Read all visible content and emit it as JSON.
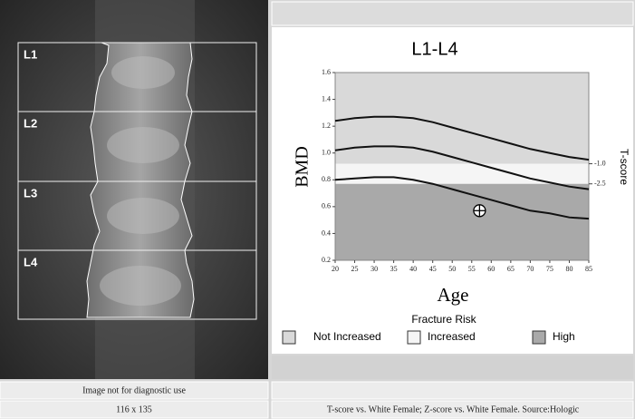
{
  "image": {
    "regions": [
      "L1",
      "L2",
      "L3",
      "L4"
    ]
  },
  "footer": {
    "left": [
      "Image not for diagnostic use",
      "116 x 135"
    ],
    "right": "T-score vs. White Female; Z-score vs. White Female. Source:Hologic"
  },
  "chart_data": {
    "type": "line",
    "title": "L1-L4",
    "x_label": "Age",
    "y_label": "BMD",
    "y2_label": "T-score",
    "x": [
      20,
      25,
      30,
      35,
      40,
      45,
      50,
      55,
      60,
      65,
      70,
      75,
      80,
      85
    ],
    "series": [
      {
        "color": "#111111",
        "values": [
          1.24,
          1.26,
          1.27,
          1.27,
          1.26,
          1.23,
          1.19,
          1.15,
          1.11,
          1.07,
          1.03,
          1.0,
          0.97,
          0.95
        ]
      },
      {
        "color": "#111111",
        "values": [
          1.02,
          1.04,
          1.05,
          1.05,
          1.04,
          1.01,
          0.97,
          0.93,
          0.89,
          0.85,
          0.81,
          0.78,
          0.75,
          0.73
        ]
      },
      {
        "color": "#111111",
        "values": [
          0.8,
          0.81,
          0.82,
          0.82,
          0.8,
          0.77,
          0.73,
          0.69,
          0.65,
          0.61,
          0.57,
          0.55,
          0.52,
          0.51
        ]
      }
    ],
    "xlim": [
      20,
      85
    ],
    "xticks": [
      20,
      25,
      30,
      35,
      40,
      45,
      50,
      55,
      60,
      65,
      70,
      75,
      80,
      85
    ],
    "ylim": [
      0.2,
      1.6
    ],
    "yticks": [
      0.2,
      0.4,
      0.6,
      0.8,
      {
        "value": 1,
        "label": "1.0"
      },
      1.2,
      1.4,
      1.6
    ],
    "y2lim": [
      -8.2,
      5.8
    ],
    "y2ticks": [
      {
        "value": -1,
        "label": "-1.0"
      },
      {
        "value": -2.5,
        "label": "-2.5"
      }
    ],
    "point": {
      "x": 57,
      "y": 0.57
    },
    "legend": {
      "title": "Fracture Risk",
      "items": [
        {
          "label": "Not Increased",
          "color": "#d9d9d9"
        },
        {
          "label": "Increased",
          "color": "#f5f5f5"
        },
        {
          "label": "High",
          "color": "#a9a9a9"
        }
      ]
    }
  }
}
